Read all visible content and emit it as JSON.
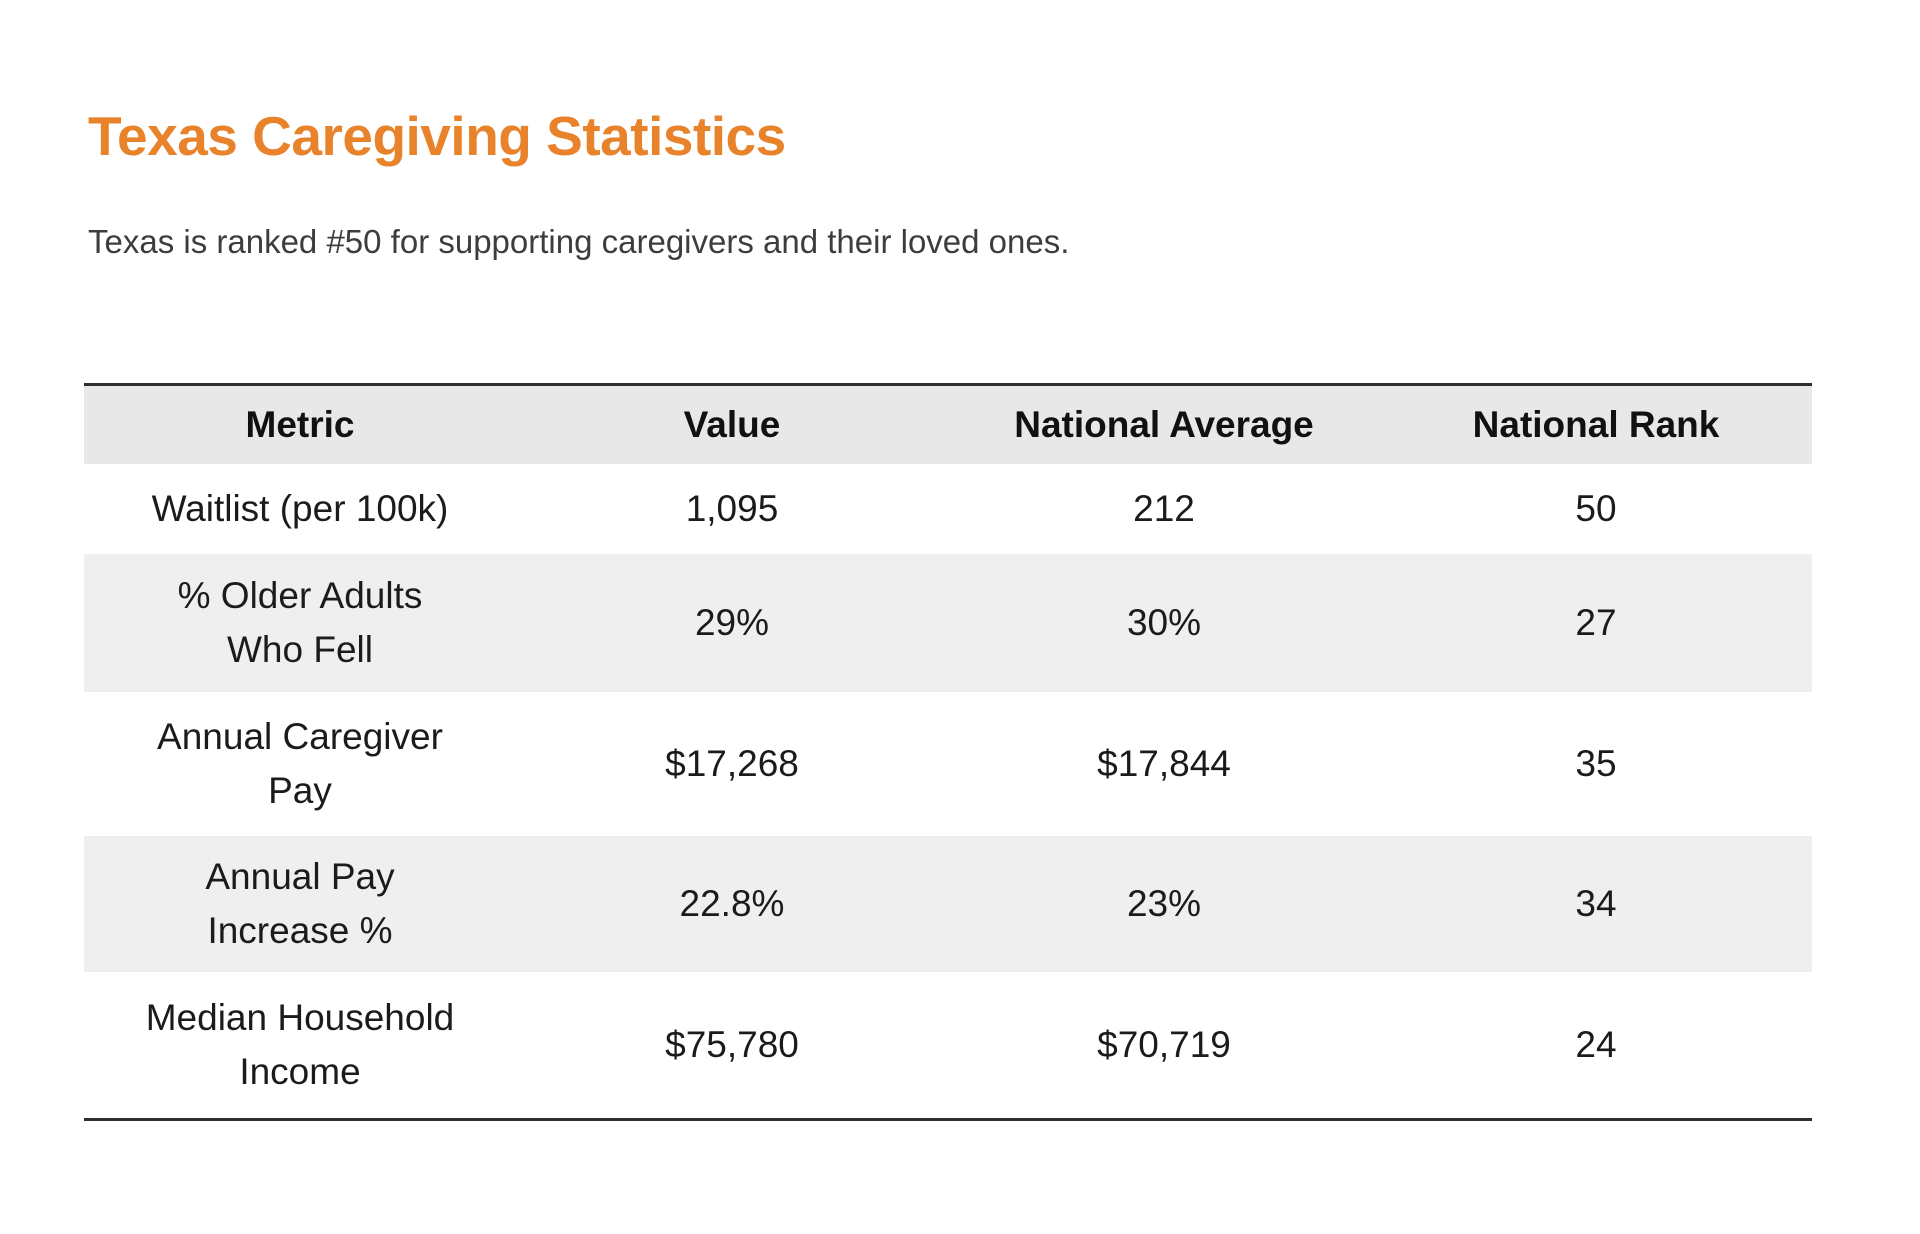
{
  "header": {
    "title": "Texas Caregiving Statistics",
    "subtitle": "Texas is ranked #50 for supporting caregivers and their loved ones."
  },
  "colors": {
    "accent_orange": "#E8832C",
    "header_row_bg": "#e8e8e8",
    "zebra_row_bg": "#efefef",
    "table_border": "#2e2e2e"
  },
  "table": {
    "columns": [
      "Metric",
      "Value",
      "National Average",
      "National Rank"
    ],
    "rows": [
      {
        "metric": "Waitlist (per 100k)",
        "value": "1,095",
        "national_average": "212",
        "national_rank": "50"
      },
      {
        "metric": "% Older Adults\nWho Fell",
        "value": "29%",
        "national_average": "30%",
        "national_rank": "27"
      },
      {
        "metric": "Annual Caregiver\nPay",
        "value": "$17,268",
        "national_average": "$17,844",
        "national_rank": "35"
      },
      {
        "metric": "Annual Pay\nIncrease %",
        "value": "22.8%",
        "national_average": "23%",
        "national_rank": "34"
      },
      {
        "metric": "Median Household\nIncome",
        "value": "$75,780",
        "national_average": "$70,719",
        "national_rank": "24"
      }
    ]
  },
  "chart_data": {
    "type": "table",
    "title": "Texas Caregiving Statistics",
    "subtitle": "Texas is ranked #50 for supporting caregivers and their loved ones.",
    "columns": [
      "Metric",
      "Value",
      "National Average",
      "National Rank"
    ],
    "rows": [
      [
        "Waitlist (per 100k)",
        "1,095",
        "212",
        "50"
      ],
      [
        "% Older Adults Who Fell",
        "29%",
        "30%",
        "27"
      ],
      [
        "Annual Caregiver Pay",
        "$17,268",
        "$17,844",
        "35"
      ],
      [
        "Annual Pay Increase %",
        "22.8%",
        "23%",
        "34"
      ],
      [
        "Median Household Income",
        "$75,780",
        "$70,719",
        "24"
      ]
    ]
  }
}
